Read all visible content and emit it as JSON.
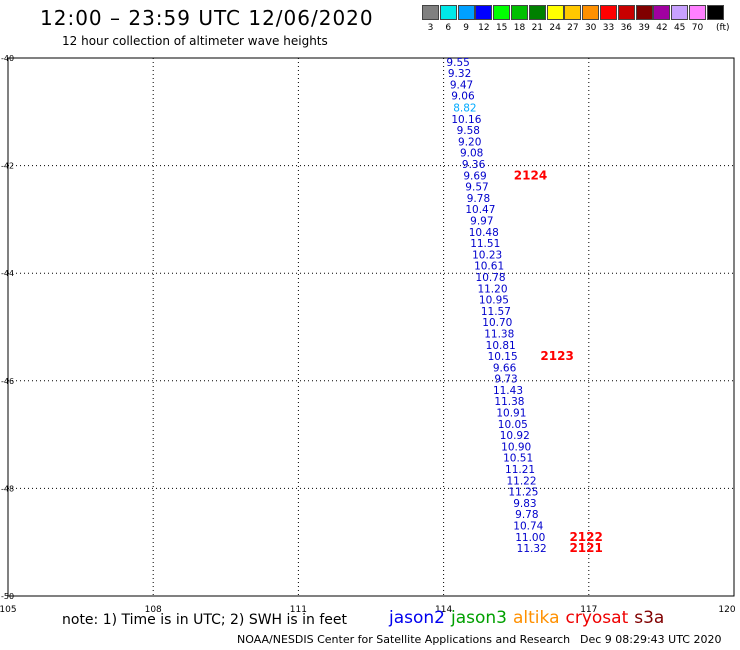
{
  "header": {
    "title": "12:00 – 23:59 UTC 12/06/2020",
    "subtitle": "12 hour collection of altimeter wave heights"
  },
  "legend": {
    "units": "(ft)",
    "bins": [
      {
        "label": "3",
        "color": "#808080"
      },
      {
        "label": "6",
        "color": "#00e8e8"
      },
      {
        "label": "9",
        "color": "#00a0ff"
      },
      {
        "label": "12",
        "color": "#0000ff"
      },
      {
        "label": "15",
        "color": "#00ff00"
      },
      {
        "label": "18",
        "color": "#00c000"
      },
      {
        "label": "21",
        "color": "#008000"
      },
      {
        "label": "24",
        "color": "#ffff00"
      },
      {
        "label": "27",
        "color": "#ffc800"
      },
      {
        "label": "30",
        "color": "#ff9000"
      },
      {
        "label": "33",
        "color": "#ff0000"
      },
      {
        "label": "36",
        "color": "#c80000"
      },
      {
        "label": "39",
        "color": "#800000"
      },
      {
        "label": "42",
        "color": "#a000a0"
      },
      {
        "label": "45",
        "color": "#c8a0ff"
      },
      {
        "label": "70",
        "color": "#ff80ff"
      },
      {
        "label": "",
        "color": "#000000"
      }
    ]
  },
  "map": {
    "lon_ticks": [
      "105",
      "108",
      "111",
      "114",
      "117",
      "120"
    ],
    "lat_ticks": [
      "-40",
      "-42",
      "-44",
      "-46",
      "-48",
      "-50"
    ],
    "lon_range": [
      105,
      120
    ],
    "lat_range": [
      -40,
      -50
    ],
    "track_color": "#0000cc",
    "highlight_color": "#00aaff",
    "time_color": "#ff0000",
    "observations": [
      {
        "value": "9.55",
        "lat": -40.07,
        "lon": 114.3
      },
      {
        "value": "9.32",
        "lat": -40.28,
        "lon": 114.33
      },
      {
        "value": "9.47",
        "lat": -40.49,
        "lon": 114.37
      },
      {
        "value": "9.06",
        "lat": -40.7,
        "lon": 114.4
      },
      {
        "value": "8.82",
        "lat": -40.92,
        "lon": 114.44,
        "highlight": true
      },
      {
        "value": "10.16",
        "lat": -41.13,
        "lon": 114.47
      },
      {
        "value": "9.58",
        "lat": -41.34,
        "lon": 114.51
      },
      {
        "value": "9.20",
        "lat": -41.55,
        "lon": 114.54
      },
      {
        "value": "9.08",
        "lat": -41.76,
        "lon": 114.58
      },
      {
        "value": "9.36",
        "lat": -41.97,
        "lon": 114.62
      },
      {
        "value": "9.69",
        "lat": -42.18,
        "lon": 114.65
      },
      {
        "value": "9.57",
        "lat": -42.39,
        "lon": 114.69
      },
      {
        "value": "9.78",
        "lat": -42.6,
        "lon": 114.72
      },
      {
        "value": "10.47",
        "lat": -42.81,
        "lon": 114.76
      },
      {
        "value": "9.97",
        "lat": -43.02,
        "lon": 114.79
      },
      {
        "value": "10.48",
        "lat": -43.23,
        "lon": 114.83
      },
      {
        "value": "11.51",
        "lat": -43.44,
        "lon": 114.86
      },
      {
        "value": "10.23",
        "lat": -43.65,
        "lon": 114.9
      },
      {
        "value": "10.61",
        "lat": -43.86,
        "lon": 114.94
      },
      {
        "value": "10.78",
        "lat": -44.07,
        "lon": 114.97
      },
      {
        "value": "11.20",
        "lat": -44.28,
        "lon": 115.01
      },
      {
        "value": "10.95",
        "lat": -44.49,
        "lon": 115.04
      },
      {
        "value": "11.57",
        "lat": -44.7,
        "lon": 115.08
      },
      {
        "value": "10.70",
        "lat": -44.91,
        "lon": 115.11
      },
      {
        "value": "11.38",
        "lat": -45.12,
        "lon": 115.15
      },
      {
        "value": "10.81",
        "lat": -45.33,
        "lon": 115.18
      },
      {
        "value": "10.15",
        "lat": -45.54,
        "lon": 115.22
      },
      {
        "value": "9.66",
        "lat": -45.75,
        "lon": 115.26
      },
      {
        "value": "9.73",
        "lat": -45.96,
        "lon": 115.29
      },
      {
        "value": "11.43",
        "lat": -46.17,
        "lon": 115.33
      },
      {
        "value": "11.38",
        "lat": -46.38,
        "lon": 115.36
      },
      {
        "value": "10.91",
        "lat": -46.59,
        "lon": 115.4
      },
      {
        "value": "10.05",
        "lat": -46.8,
        "lon": 115.43
      },
      {
        "value": "10.92",
        "lat": -47.01,
        "lon": 115.47
      },
      {
        "value": "10.90",
        "lat": -47.22,
        "lon": 115.5
      },
      {
        "value": "10.51",
        "lat": -47.43,
        "lon": 115.54
      },
      {
        "value": "11.21",
        "lat": -47.64,
        "lon": 115.58
      },
      {
        "value": "11.22",
        "lat": -47.85,
        "lon": 115.61
      },
      {
        "value": "11.25",
        "lat": -48.06,
        "lon": 115.65
      },
      {
        "value": "9.83",
        "lat": -48.27,
        "lon": 115.68
      },
      {
        "value": "9.78",
        "lat": -48.48,
        "lon": 115.72
      },
      {
        "value": "10.74",
        "lat": -48.69,
        "lon": 115.75
      },
      {
        "value": "11.00",
        "lat": -48.9,
        "lon": 115.79
      },
      {
        "value": "11.32",
        "lat": -49.11,
        "lon": 115.82
      }
    ],
    "time_labels": [
      {
        "text": "2124",
        "lat": -42.18,
        "lon": 115.45
      },
      {
        "text": "2123",
        "lat": -45.54,
        "lon": 116.0
      },
      {
        "text": "2122",
        "lat": -48.9,
        "lon": 116.6
      },
      {
        "text": "2121",
        "lat": -49.11,
        "lon": 116.6
      }
    ]
  },
  "footer": {
    "note": "note:  1) Time is in UTC; 2) SWH is in feet",
    "missions": [
      {
        "name": "jason2",
        "color": "#0000ee"
      },
      {
        "name": "jason3",
        "color": "#00a000"
      },
      {
        "name": "altika",
        "color": "#ff9000"
      },
      {
        "name": "cryosat",
        "color": "#ee0000"
      },
      {
        "name": "s3a",
        "color": "#800000"
      }
    ],
    "credit": "NOAA/NESDIS Center for Satellite Applications and Research",
    "timestamp": "Dec  9 08:29:43 UTC 2020"
  }
}
